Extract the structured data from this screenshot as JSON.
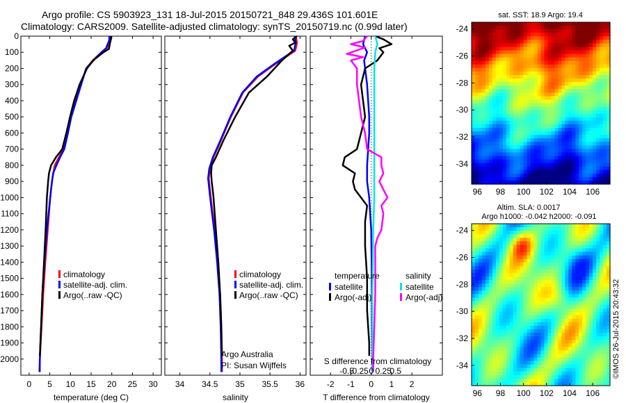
{
  "header": {
    "line1": "Argo profile: CS 5903923_131 18-Jul-2015 20150721_848 29.436S 101.601E",
    "line2": "Climatology: CARS2009. Satellite-adjusted climatology: synTS_20150719.nc (0.99d later)"
  },
  "sst": {
    "label": "sat. SST: 18.9 Argo: 19.4"
  },
  "sla": {
    "label1": "Altim. SLA: 0.0017",
    "label2": "Argo h1000: -0.042 h2000: -0.091"
  },
  "credits": {
    "org": "Argo Australia",
    "pi": "PI: Susan Wijffels"
  },
  "stamp": "©IMOS 26-Jul-2015 20:43:32",
  "colors": {
    "climatology": "#ff0000",
    "satellite": "#0000ff",
    "argo": "#000000",
    "sal_satellite": "#00e5ee",
    "sal_argo": "#ff00ff"
  },
  "chart_data": [
    {
      "type": "line",
      "xlabel": "temperature (deg C)",
      "ylabel": "",
      "xlim": [
        -2,
        32
      ],
      "ylim": [
        2100,
        0
      ],
      "xticks": [
        "0",
        "5",
        "10",
        "15",
        "20",
        "25",
        "30"
      ],
      "yticks": [
        "0",
        "100",
        "200",
        "300",
        "400",
        "500",
        "600",
        "700",
        "800",
        "900",
        "1000",
        "1100",
        "1200",
        "1300",
        "1400",
        "1500",
        "1600",
        "1700",
        "1800",
        "1900",
        "2000"
      ],
      "legend": [
        "climatology",
        "satellite-adj. clim.",
        "Argo(..raw -QC)"
      ],
      "series": [
        {
          "name": "climatology",
          "color": "#ff0000",
          "points": [
            [
              19.6,
              0
            ],
            [
              19.5,
              25
            ],
            [
              19.2,
              50
            ],
            [
              18.8,
              75
            ],
            [
              17.5,
              100
            ],
            [
              15.4,
              150
            ],
            [
              13.8,
              200
            ],
            [
              12.5,
              300
            ],
            [
              11.3,
              400
            ],
            [
              10.2,
              500
            ],
            [
              9.3,
              600
            ],
            [
              8.3,
              700
            ],
            [
              7.2,
              750
            ],
            [
              6.2,
              800
            ],
            [
              5.5,
              900
            ],
            [
              5.1,
              1000
            ],
            [
              4.5,
              1200
            ],
            [
              3.9,
              1400
            ],
            [
              3.4,
              1600
            ],
            [
              3.0,
              1800
            ],
            [
              2.6,
              2000
            ],
            [
              2.6,
              2080
            ]
          ]
        },
        {
          "name": "satellite-adj. clim.",
          "color": "#0000ff",
          "points": [
            [
              19.4,
              0
            ],
            [
              19.4,
              25
            ],
            [
              19.0,
              50
            ],
            [
              18.6,
              75
            ],
            [
              17.5,
              100
            ],
            [
              15.6,
              150
            ],
            [
              13.8,
              200
            ],
            [
              12.6,
              300
            ],
            [
              11.4,
              400
            ],
            [
              10.2,
              500
            ],
            [
              9.4,
              600
            ],
            [
              8.5,
              700
            ],
            [
              7.5,
              750
            ],
            [
              6.6,
              800
            ],
            [
              5.8,
              850
            ],
            [
              5.3,
              950
            ],
            [
              4.9,
              1050
            ],
            [
              4.3,
              1200
            ],
            [
              3.7,
              1400
            ],
            [
              3.2,
              1600
            ],
            [
              2.9,
              1800
            ],
            [
              2.6,
              2000
            ],
            [
              2.5,
              2080
            ]
          ]
        },
        {
          "name": "Argo(..raw -QC)",
          "color": "#000000",
          "points": [
            [
              19.9,
              0
            ],
            [
              19.8,
              20
            ],
            [
              19.6,
              40
            ],
            [
              19.3,
              80
            ],
            [
              18.0,
              100
            ],
            [
              15.5,
              150
            ],
            [
              14.0,
              200
            ],
            [
              12.2,
              300
            ],
            [
              10.9,
              400
            ],
            [
              9.9,
              500
            ],
            [
              9.0,
              600
            ],
            [
              8.0,
              700
            ],
            [
              6.5,
              750
            ],
            [
              5.3,
              800
            ],
            [
              4.8,
              850
            ],
            [
              4.6,
              900
            ],
            [
              4.3,
              1000
            ],
            [
              4.0,
              1200
            ],
            [
              3.6,
              1400
            ],
            [
              3.2,
              1600
            ],
            [
              2.9,
              1800
            ],
            [
              2.6,
              1980
            ]
          ]
        }
      ]
    },
    {
      "type": "line",
      "xlabel": "salinity",
      "ylabel": "",
      "xlim": [
        33.75,
        36.1
      ],
      "ylim": [
        2100,
        0
      ],
      "xticks": [
        "34",
        "34.5",
        "35",
        "35.5",
        "36"
      ],
      "legend": [
        "climatology",
        "satellite-adj. clim.",
        "Argo(..raw -QC)"
      ],
      "series": [
        {
          "name": "climatology",
          "color": "#ff0000",
          "points": [
            [
              35.93,
              0
            ],
            [
              35.95,
              40
            ],
            [
              35.92,
              90
            ],
            [
              35.6,
              170
            ],
            [
              35.3,
              250
            ],
            [
              35.05,
              350
            ],
            [
              34.85,
              500
            ],
            [
              34.68,
              650
            ],
            [
              34.56,
              750
            ],
            [
              34.5,
              820
            ],
            [
              34.48,
              880
            ],
            [
              34.5,
              950
            ],
            [
              34.53,
              1050
            ],
            [
              34.58,
              1200
            ],
            [
              34.63,
              1400
            ],
            [
              34.67,
              1600
            ],
            [
              34.69,
              1800
            ],
            [
              34.7,
              2000
            ],
            [
              34.7,
              2080
            ]
          ]
        },
        {
          "name": "satellite-adj. clim.",
          "color": "#0000ff",
          "points": [
            [
              35.91,
              0
            ],
            [
              35.93,
              40
            ],
            [
              35.9,
              90
            ],
            [
              35.58,
              170
            ],
            [
              35.28,
              250
            ],
            [
              35.04,
              350
            ],
            [
              34.84,
              500
            ],
            [
              34.67,
              650
            ],
            [
              34.55,
              750
            ],
            [
              34.49,
              820
            ],
            [
              34.47,
              880
            ],
            [
              34.49,
              950
            ],
            [
              34.52,
              1050
            ],
            [
              34.57,
              1200
            ],
            [
              34.62,
              1400
            ],
            [
              34.66,
              1600
            ],
            [
              34.68,
              1800
            ],
            [
              34.69,
              2000
            ],
            [
              34.69,
              2080
            ]
          ]
        },
        {
          "name": "Argo(..raw -QC)",
          "color": "#000000",
          "points": [
            [
              35.95,
              0
            ],
            [
              35.88,
              20
            ],
            [
              35.92,
              40
            ],
            [
              35.82,
              60
            ],
            [
              35.88,
              90
            ],
            [
              35.7,
              150
            ],
            [
              35.45,
              250
            ],
            [
              35.15,
              350
            ],
            [
              34.92,
              500
            ],
            [
              34.72,
              650
            ],
            [
              34.6,
              750
            ],
            [
              34.53,
              800
            ],
            [
              34.52,
              850
            ],
            [
              34.53,
              900
            ],
            [
              34.56,
              1000
            ],
            [
              34.6,
              1200
            ],
            [
              34.64,
              1400
            ],
            [
              34.67,
              1600
            ],
            [
              34.69,
              1800
            ],
            [
              34.7,
              1980
            ]
          ]
        }
      ]
    },
    {
      "type": "line",
      "xlabel": "T difference from climatology",
      "xlabel_top": "S difference from climatology",
      "ylabel": "",
      "xlim": [
        -3,
        3.5
      ],
      "ylim": [
        2100,
        0
      ],
      "xticks": [
        "-2",
        "-1",
        "0",
        "1",
        "2"
      ],
      "xticks_top": [
        "-0.5",
        "-0.25",
        "0",
        "0.25",
        "0.5"
      ],
      "legend_groups": [
        {
          "title": "temperature",
          "items": [
            "satellite",
            "Argo(-adj)"
          ]
        },
        {
          "title": "salinity",
          "items": [
            "satellite",
            "Argo(-adj)"
          ]
        }
      ],
      "series": [
        {
          "name": "satellite",
          "group": "temperature",
          "color": "#0000ff",
          "points": [
            [
              -0.3,
              0
            ],
            [
              -0.4,
              50
            ],
            [
              -0.2,
              100
            ],
            [
              -0.35,
              150
            ],
            [
              -0.3,
              200
            ],
            [
              -0.2,
              300
            ],
            [
              -0.15,
              400
            ],
            [
              -0.1,
              500
            ],
            [
              -0.1,
              600
            ],
            [
              -0.15,
              700
            ],
            [
              -0.2,
              800
            ],
            [
              -0.2,
              900
            ],
            [
              -0.1,
              1000
            ],
            [
              -0.05,
              1100
            ],
            [
              0.0,
              1200
            ],
            [
              0.02,
              1400
            ],
            [
              0.03,
              1600
            ],
            [
              0.03,
              1800
            ],
            [
              0.05,
              2000
            ]
          ]
        },
        {
          "name": "Argo(-adj)",
          "group": "temperature",
          "color": "#000000",
          "points": [
            [
              0.2,
              0
            ],
            [
              0.6,
              20
            ],
            [
              1.0,
              50
            ],
            [
              0.4,
              75
            ],
            [
              0.6,
              100
            ],
            [
              0.3,
              150
            ],
            [
              -0.3,
              200
            ],
            [
              -0.5,
              300
            ],
            [
              -0.4,
              400
            ],
            [
              -0.3,
              500
            ],
            [
              -0.5,
              600
            ],
            [
              -0.7,
              700
            ],
            [
              -1.3,
              750
            ],
            [
              -1.4,
              800
            ],
            [
              -0.8,
              850
            ],
            [
              -0.9,
              900
            ],
            [
              -0.8,
              950
            ],
            [
              -0.5,
              1000
            ],
            [
              -0.2,
              1050
            ],
            [
              -0.3,
              1150
            ],
            [
              -0.3,
              1300
            ],
            [
              -0.2,
              1500
            ],
            [
              -0.2,
              1700
            ],
            [
              -0.1,
              1900
            ],
            [
              -0.1,
              1980
            ]
          ]
        },
        {
          "name": "satellite",
          "group": "salinity",
          "color": "#00e5ee",
          "points": [
            [
              0.2,
              0
            ],
            [
              0.3,
              50
            ],
            [
              0.2,
              100
            ],
            [
              0.15,
              200
            ],
            [
              0.15,
              400
            ],
            [
              0.15,
              600
            ],
            [
              0.15,
              800
            ],
            [
              0.15,
              1000
            ],
            [
              0.1,
              1200
            ],
            [
              0.08,
              1400
            ],
            [
              0.05,
              1600
            ],
            [
              0.05,
              1800
            ],
            [
              0.05,
              2000
            ],
            [
              0.05,
              2080
            ]
          ]
        },
        {
          "name": "Argo(-adj)",
          "group": "salinity",
          "color": "#ff00ff",
          "points": [
            [
              -0.2,
              0
            ],
            [
              -0.4,
              30
            ],
            [
              -1.0,
              50
            ],
            [
              -0.3,
              70
            ],
            [
              -1.2,
              110
            ],
            [
              -0.4,
              130
            ],
            [
              -1.0,
              150
            ],
            [
              -0.7,
              200
            ],
            [
              -0.7,
              300
            ],
            [
              -0.6,
              400
            ],
            [
              -0.5,
              500
            ],
            [
              -0.3,
              600
            ],
            [
              -0.2,
              700
            ],
            [
              0.5,
              750
            ],
            [
              0.5,
              800
            ],
            [
              0.6,
              850
            ],
            [
              0.4,
              900
            ],
            [
              0.6,
              950
            ],
            [
              0.8,
              1000
            ],
            [
              0.5,
              1050
            ],
            [
              0.6,
              1100
            ],
            [
              0.5,
              1200
            ],
            [
              0.3,
              1250
            ],
            [
              0.2,
              1300
            ],
            [
              0.2,
              1400
            ],
            [
              0.2,
              1600
            ],
            [
              0.15,
              1800
            ],
            [
              0.1,
              2000
            ],
            [
              0.1,
              2080
            ]
          ]
        }
      ]
    },
    {
      "type": "heatmap",
      "title": "sat. SST: 18.9 Argo: 19.4",
      "xlim": [
        95.5,
        107.5
      ],
      "ylim": [
        -35.5,
        -23.5
      ],
      "xticks": [
        "96",
        "98",
        "100",
        "102",
        "104",
        "106"
      ],
      "yticks": [
        "-24",
        "-26",
        "-28",
        "-30",
        "-32",
        "-34"
      ],
      "colormap": "jet-like (blue=cold, red=warm)"
    },
    {
      "type": "heatmap",
      "title": "Altim. SLA: 0.0017",
      "xlim": [
        95.5,
        107.5
      ],
      "ylim": [
        -35.5,
        -23.5
      ],
      "xticks": [
        "96",
        "98",
        "100",
        "102",
        "104",
        "106"
      ],
      "yticks": [
        "-24",
        "-26",
        "-28",
        "-30",
        "-32",
        "-34"
      ],
      "colormap": "jet-like"
    }
  ]
}
